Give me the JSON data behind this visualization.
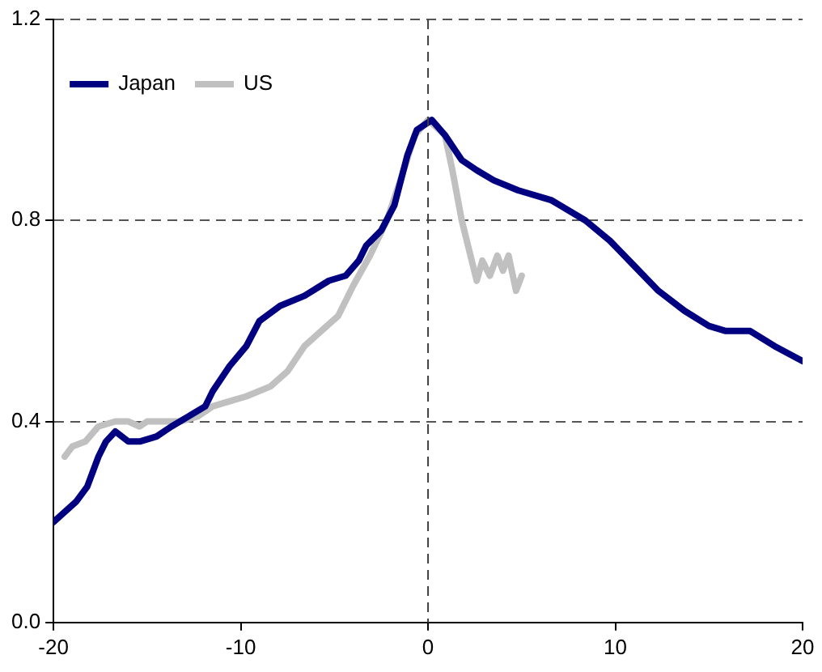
{
  "chart_data": {
    "type": "line",
    "series": [
      {
        "name": "Japan",
        "color": "#000080",
        "x": [
          -20,
          -19.4,
          -18.8,
          -18.2,
          -17.6,
          -17.2,
          -16.7,
          -16.0,
          -15.4,
          -14.5,
          -13.7,
          -12.8,
          -11.9,
          -11.5,
          -10.6,
          -9.7,
          -9.0,
          -7.9,
          -6.6,
          -5.3,
          -4.4,
          -3.7,
          -3.3,
          -2.5,
          -1.8,
          -1.1,
          -0.6,
          0.2,
          0.9,
          1.8,
          2.6,
          3.5,
          4.8,
          6.6,
          8.4,
          9.7,
          11.0,
          12.3,
          13.7,
          15.0,
          15.9,
          17.2,
          18.5,
          20
        ],
        "values": [
          0.2,
          0.22,
          0.24,
          0.27,
          0.33,
          0.36,
          0.38,
          0.36,
          0.36,
          0.37,
          0.39,
          0.41,
          0.43,
          0.46,
          0.51,
          0.55,
          0.6,
          0.63,
          0.65,
          0.68,
          0.69,
          0.72,
          0.75,
          0.78,
          0.83,
          0.93,
          0.98,
          1.0,
          0.97,
          0.92,
          0.9,
          0.88,
          0.86,
          0.84,
          0.8,
          0.76,
          0.71,
          0.66,
          0.62,
          0.59,
          0.58,
          0.58,
          0.55,
          0.52
        ]
      },
      {
        "name": "US",
        "color": "#c0c0c0",
        "x": [
          -19.4,
          -19.0,
          -18.3,
          -17.6,
          -16.7,
          -16.0,
          -15.4,
          -15.0,
          -14.1,
          -13.2,
          -12.3,
          -11.5,
          -10.6,
          -9.7,
          -8.4,
          -7.5,
          -6.6,
          -5.7,
          -4.8,
          -4.0,
          -3.1,
          -2.2,
          -1.3,
          -0.7,
          0,
          0.9,
          1.3,
          1.8,
          2.6,
          2.9,
          3.3,
          3.7,
          4.0,
          4.3,
          4.7,
          5.0
        ],
        "values": [
          0.33,
          0.35,
          0.36,
          0.39,
          0.4,
          0.4,
          0.39,
          0.4,
          0.4,
          0.4,
          0.41,
          0.43,
          0.44,
          0.45,
          0.47,
          0.5,
          0.55,
          0.58,
          0.61,
          0.67,
          0.73,
          0.8,
          0.9,
          0.97,
          1.0,
          0.97,
          0.9,
          0.8,
          0.68,
          0.72,
          0.69,
          0.73,
          0.7,
          0.73,
          0.66,
          0.69
        ]
      }
    ],
    "xlim": [
      -20,
      20
    ],
    "xticks": [
      -20,
      -10,
      0,
      10,
      20
    ],
    "ylim": [
      0,
      1.2
    ],
    "yticks": [
      {
        "value": 0,
        "label": "0.0"
      },
      {
        "value": 0.4,
        "label": "0.4"
      },
      {
        "value": 0.8,
        "label": "0.8"
      },
      {
        "value": 1.2,
        "label": "1.2"
      }
    ],
    "ref_lines": [
      {
        "axis": "x",
        "value": 0,
        "line_style": "dashed",
        "color": "#404040"
      }
    ],
    "grid": "y",
    "legend": "top left",
    "marker": "none",
    "line_style": "solid"
  }
}
